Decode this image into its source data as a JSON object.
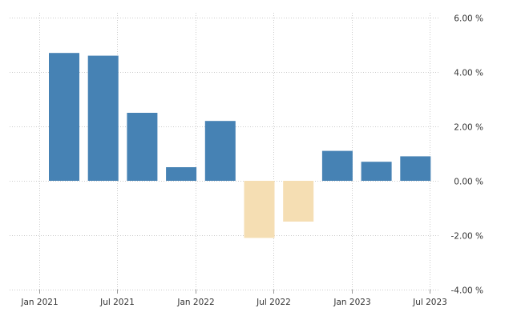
{
  "chart_data": {
    "type": "bar",
    "categories": [
      "Q1 2021",
      "Q2 2021",
      "Q3 2021",
      "Q4 2021",
      "Q1 2022",
      "Q2 2022",
      "Q3 2022",
      "Q4 2022",
      "Q1 2023",
      "Q2 2023"
    ],
    "values": [
      4.7,
      4.6,
      2.5,
      0.5,
      2.2,
      -2.1,
      -1.5,
      1.1,
      0.7,
      0.9
    ],
    "ylim": [
      -4,
      6
    ],
    "y_ticks": [
      6,
      4,
      2,
      0,
      -2,
      -4
    ],
    "y_tick_labels": [
      "6.00 %",
      "4.00 %",
      "2.00 %",
      "0.00 %",
      "-2.00 %",
      "-4.00 %"
    ],
    "x_tick_labels": [
      "Jan 2021",
      "Jul 2021",
      "Jan 2022",
      "Jul 2022",
      "Jan 2023",
      "Jul 2023"
    ],
    "x_tick_positions": [
      0,
      2,
      4,
      6,
      8,
      10
    ],
    "grid": true,
    "y_axis_side": "right",
    "colors": {
      "positive": "#4682b4",
      "negative": "#f5deb3",
      "grid": "#cccccc"
    }
  }
}
